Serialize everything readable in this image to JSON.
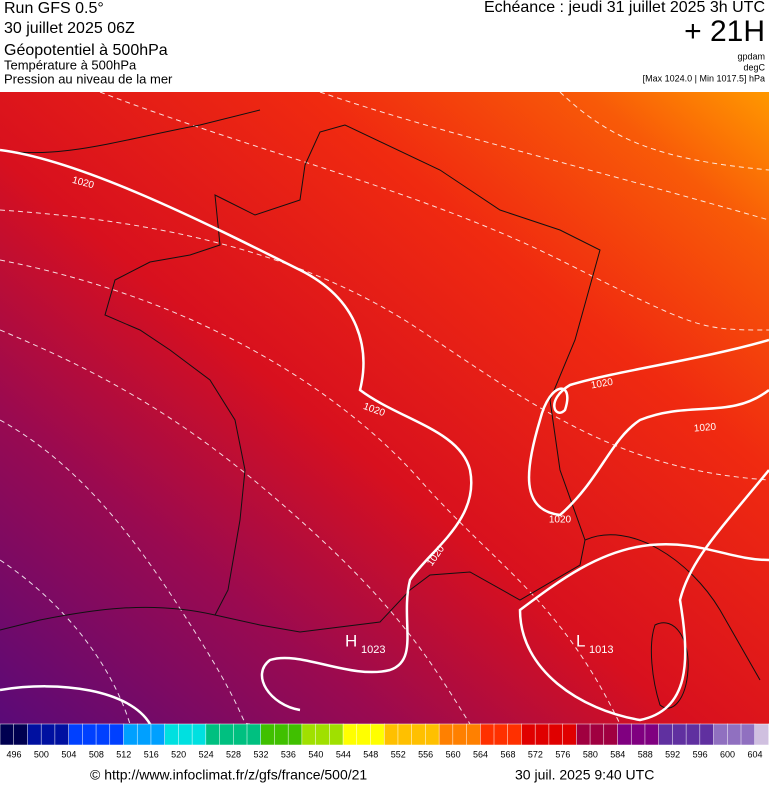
{
  "header": {
    "run": "Run GFS 0.5°",
    "run_date": "30 juillet 2025 06Z",
    "title": "Géopotentiel à 500hPa",
    "subtitle_1": "Température à 500hPa",
    "subtitle_2": "Pression au niveau de la mer",
    "valid_time": "Echéance : jeudi 31 juillet 2025 3h UTC",
    "lead_time": "+ 21H",
    "unit_1": "gpdam",
    "unit_2": "degC",
    "pressure_range": "[Max 1024.0 | Min 1017.5] hPa"
  },
  "map": {
    "isobar_labels": [
      "1020",
      "1020",
      "1020",
      "1020",
      "1020",
      "1020"
    ],
    "high": {
      "letter": "H",
      "value": "1023"
    },
    "low": {
      "letter": "L",
      "value": "1013"
    }
  },
  "colorbar": {
    "ticks": [
      496,
      500,
      504,
      508,
      512,
      516,
      520,
      524,
      528,
      532,
      536,
      540,
      544,
      548,
      552,
      556,
      560,
      564,
      568,
      572,
      576,
      580,
      584,
      588,
      592,
      596,
      600,
      604
    ]
  },
  "footer": {
    "source": "© http://www.infoclimat.fr/z/gfs/france/500/21",
    "timestamp": "30 juil. 2025  9:40 UTC"
  }
}
